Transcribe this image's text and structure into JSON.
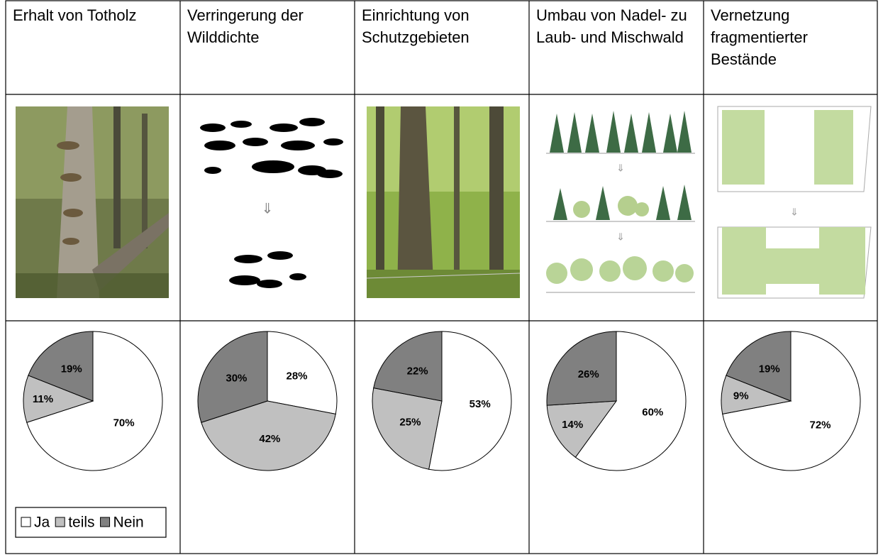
{
  "table": {
    "headers": [
      "Erhalt von Totholz",
      "Verringerung der Wilddichte",
      "Einrichtung von Schutzgebieten",
      "Umbau von Nadel- zu Laub- und Mischwald",
      "Vernetzung fragmentierter Bestände"
    ]
  },
  "legend": {
    "labels": [
      "Ja",
      "teils",
      "Nein"
    ],
    "colors": [
      "#ffffff",
      "#c0c0c0",
      "#808080"
    ]
  },
  "chart_data": [
    {
      "type": "pie",
      "values": [
        70,
        11,
        19
      ],
      "value_labels": [
        "70%",
        "11%",
        "19%"
      ]
    },
    {
      "type": "pie",
      "values": [
        28,
        42,
        30
      ],
      "value_labels": [
        "28%",
        "42%",
        "30%"
      ]
    },
    {
      "type": "pie",
      "values": [
        53,
        25,
        22
      ],
      "value_labels": [
        "53%",
        "25%",
        "22%"
      ]
    },
    {
      "type": "pie",
      "values": [
        60,
        14,
        26
      ],
      "value_labels": [
        "60%",
        "14%",
        "26%"
      ]
    },
    {
      "type": "pie",
      "values": [
        72,
        9,
        19
      ],
      "value_labels": [
        "72%",
        "9%",
        "19%"
      ]
    }
  ]
}
